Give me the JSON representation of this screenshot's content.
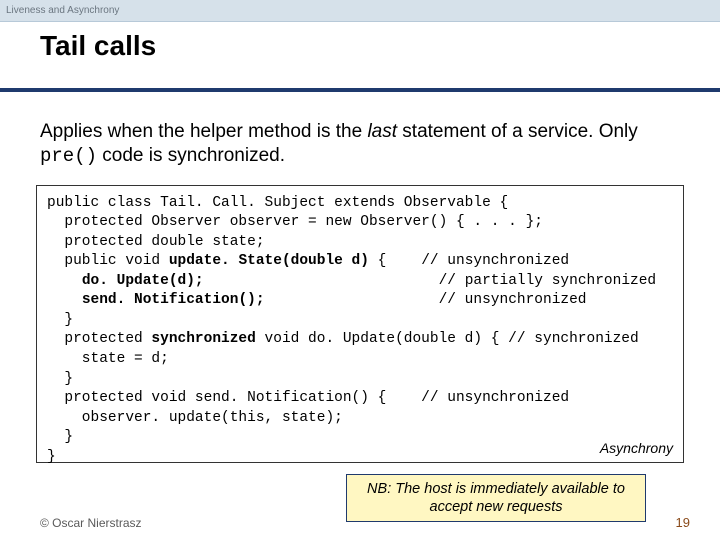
{
  "header": {
    "topic": "Liveness and Asynchrony"
  },
  "title": "Tail calls",
  "intro": {
    "part1": "Applies when the helper method is the ",
    "last": "last",
    "part2": " statement of a service. Only ",
    "code": "pre()",
    "part3": " code is synchronized."
  },
  "code": {
    "l1a": "public class Tail. Call. Subject extends Observable {",
    "l2a": "  protected Observer observer = new Observer() { . . . };",
    "l3a": "  protected double state;",
    "l4a": "  public void ",
    "l4b": "update. State(double d)",
    "l4c": " {    ",
    "l4d": "// unsynchronized",
    "l5a": "    ",
    "l5b": "do. Update(d);",
    "l5c": "                           ",
    "l5d": "// partially synchronized",
    "l6a": "    ",
    "l6b": "send. Notification();",
    "l6c": "                    ",
    "l6d": "// unsynchronized",
    "l7a": "  }",
    "l8a": "  protected ",
    "l8b": "synchronized",
    "l8c": " void do. Update(double d) {",
    "l8d": " // synchronized",
    "l9a": "    state = d;",
    "l10a": "  }",
    "l11a": "  protected void send. Notification() {    ",
    "l11b": "// unsynchronized",
    "l12a": "    observer. update(this, state);",
    "l13a": "  }",
    "l14a": "}",
    "caption": "Asynchrony"
  },
  "nb": "NB: The host is immediately available to accept new requests",
  "footer": {
    "copyright": "© Oscar Nierstrasz",
    "page": "19"
  }
}
